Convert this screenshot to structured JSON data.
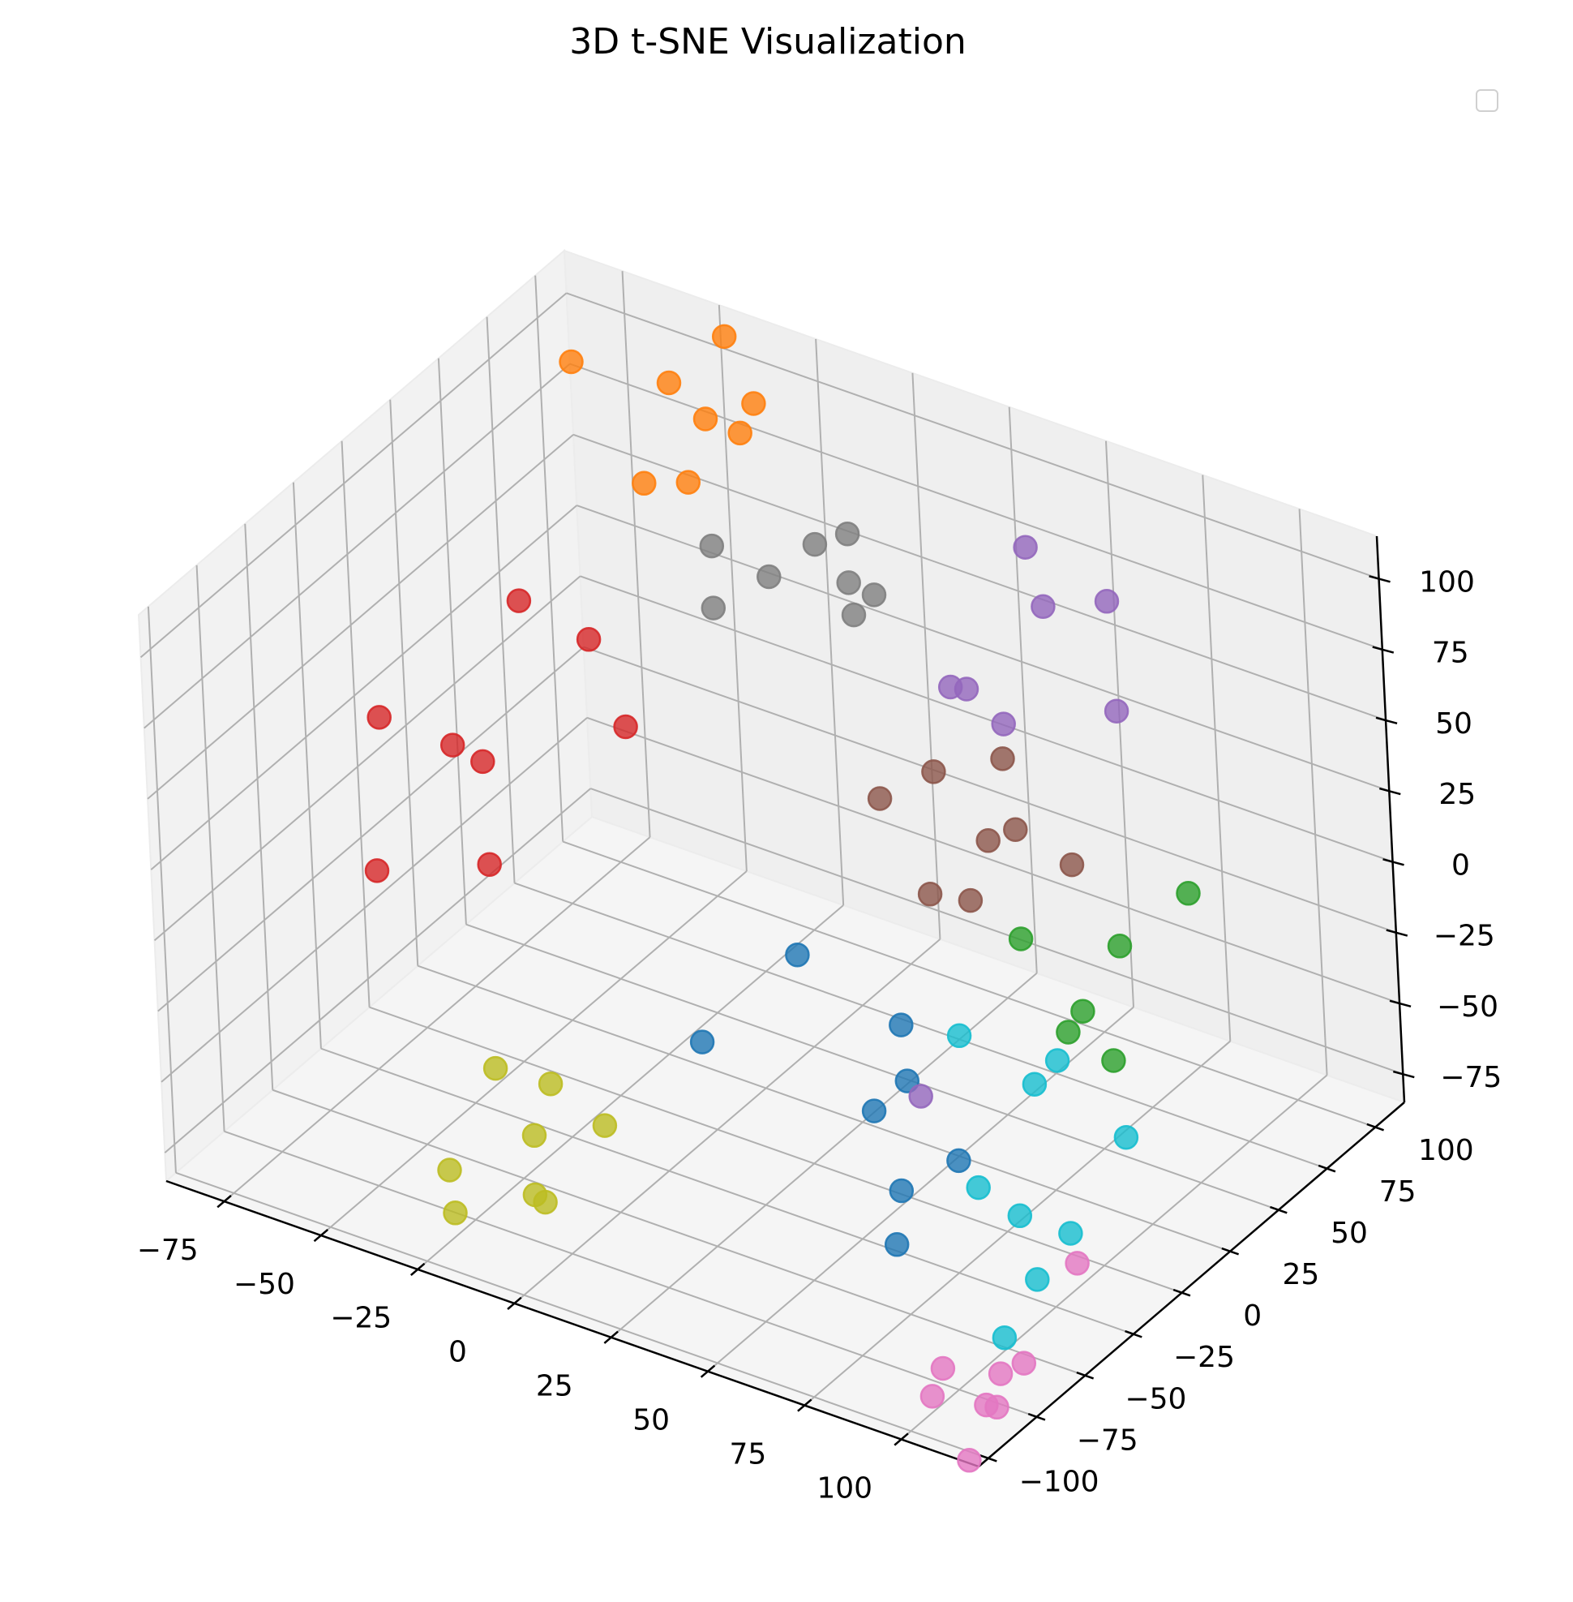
{
  "chart_data": {
    "type": "scatter",
    "title": "3D t-SNE Visualization",
    "projection": "3d",
    "legend": {
      "placement": "top-right",
      "entries": []
    },
    "grid": true,
    "xlabel": "",
    "ylabel": "",
    "zlabel": "",
    "xlim": [
      -90,
      120
    ],
    "ylim": [
      -105,
      115
    ],
    "zlim": [
      -85,
      115
    ],
    "x_ticks": [
      -75,
      -50,
      -25,
      0,
      25,
      50,
      75,
      100
    ],
    "x_tick_labels": [
      "−75",
      "−50",
      "−25",
      "0",
      "25",
      "50",
      "75",
      "100"
    ],
    "y_ticks": [
      -100,
      -75,
      -50,
      -25,
      0,
      25,
      50,
      75,
      100
    ],
    "y_tick_labels": [
      "−100",
      "−75",
      "−50",
      "−25",
      "0",
      "25",
      "50",
      "75",
      "100"
    ],
    "z_ticks": [
      -75,
      -50,
      -25,
      0,
      25,
      50,
      75,
      100
    ],
    "z_tick_labels": [
      "−75",
      "−50",
      "−25",
      "0",
      "25",
      "50",
      "75",
      "100"
    ],
    "series": [
      {
        "color": "#1f77b4",
        "points": [
          [
            22,
            -47,
            -16
          ],
          [
            54,
            17,
            -80
          ],
          [
            55,
            -14,
            -72
          ],
          [
            42,
            16,
            -57
          ],
          [
            43,
            -3,
            -56
          ],
          [
            39,
            20,
            -41
          ],
          [
            -7,
            57,
            -60
          ],
          [
            60,
            -27,
            -81
          ]
        ]
      },
      {
        "color": "#ff7f0e",
        "points": [
          [
            -70,
            78,
            107
          ],
          [
            -52,
            92,
            100
          ],
          [
            -48,
            113,
            106
          ],
          [
            -39,
            109,
            89
          ],
          [
            -36,
            69,
            86
          ],
          [
            -44,
            111,
            75
          ],
          [
            -54,
            81,
            70
          ],
          [
            -54,
            113,
            74
          ]
        ]
      },
      {
        "color": "#2ca02c",
        "points": [
          [
            95,
            60,
            9
          ],
          [
            52,
            57,
            -26
          ],
          [
            71,
            70,
            -27
          ],
          [
            70,
            52,
            -40
          ],
          [
            68,
            48,
            -46
          ],
          [
            78,
            51,
            -53
          ]
        ]
      },
      {
        "color": "#d62728",
        "points": [
          [
            -89,
            10,
            12
          ],
          [
            -65,
            15,
            5
          ],
          [
            -69,
            8,
            13
          ],
          [
            -72,
            50,
            38
          ],
          [
            -61,
            63,
            22
          ],
          [
            -73,
            -25,
            -14
          ],
          [
            -45,
            49,
            7
          ],
          [
            -55,
            -3,
            -16
          ]
        ]
      },
      {
        "color": "#9467bd",
        "points": [
          [
            46,
            80,
            96
          ],
          [
            43,
            93,
            66
          ],
          [
            63,
            87,
            81
          ],
          [
            42,
            47,
            64
          ],
          [
            70,
            76,
            52
          ],
          [
            34,
            70,
            46
          ],
          [
            47,
            63,
            44
          ],
          [
            56,
            -4,
            -44
          ]
        ]
      },
      {
        "color": "#8c564b",
        "points": [
          [
            28,
            63,
            18
          ],
          [
            41,
            73,
            23
          ],
          [
            22,
            47,
            15
          ],
          [
            44,
            72,
            0
          ],
          [
            42,
            62,
            1
          ],
          [
            60,
            69,
            -3
          ],
          [
            34,
            47,
            -13
          ],
          [
            44,
            48,
            -11
          ]
        ]
      },
      {
        "color": "#e377c2",
        "points": [
          [
            104,
            -21,
            -70
          ],
          [
            103,
            -48,
            -90
          ],
          [
            98,
            -53,
            -105
          ],
          [
            87,
            -64,
            -100
          ],
          [
            88,
            -60,
            -92
          ],
          [
            101,
            -56,
            -90
          ],
          [
            100,
            -62,
            -98
          ],
          [
            98,
            -68,
            -115
          ]
        ]
      },
      {
        "color": "#7f7f7f",
        "points": [
          [
            -37,
            81,
            56
          ],
          [
            -31,
            69,
            44
          ],
          [
            -25,
            86,
            48
          ],
          [
            -21,
            102,
            52
          ],
          [
            -16,
            109,
            54
          ],
          [
            -11,
            99,
            45
          ],
          [
            -5,
            100,
            43
          ],
          [
            0,
            80,
            50
          ]
        ]
      },
      {
        "color": "#bcbd22",
        "points": [
          [
            -38,
            -37,
            -60
          ],
          [
            -29,
            -27,
            -67
          ],
          [
            -36,
            -66,
            -78
          ],
          [
            -34,
            -68,
            -91
          ],
          [
            -16,
            -57,
            -85
          ],
          [
            -34,
            -28,
            -108
          ],
          [
            -19,
            -20,
            -81
          ],
          [
            -26,
            -42,
            -75
          ]
        ]
      },
      {
        "color": "#17becf",
        "points": [
          [
            110,
            -5,
            -32
          ],
          [
            109,
            -33,
            -50
          ],
          [
            89,
            -20,
            -61
          ],
          [
            88,
            -38,
            -41
          ],
          [
            85,
            -2,
            -27
          ],
          [
            69,
            -8,
            -14
          ],
          [
            86,
            8,
            -24
          ],
          [
            97,
            -28,
            -75
          ],
          [
            94,
            -40,
            -90
          ]
        ]
      }
    ]
  }
}
